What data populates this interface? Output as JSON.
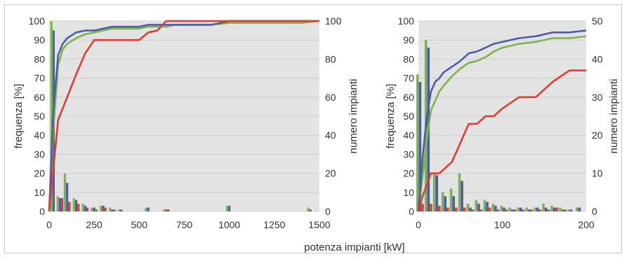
{
  "figure": {
    "xlabel": "potenza impianti [kW]"
  },
  "colors": {
    "blue": "#4f5bab",
    "green": "#7ab648",
    "red": "#e03c31",
    "grid": "#d0d0d0",
    "plot_bg": "#e3e3e3"
  },
  "chart_data": [
    {
      "type": "bar+line",
      "ylabel": "frequenza [%]",
      "y2label": "numero impianti",
      "xlim": [
        0,
        1500
      ],
      "ylim": [
        0,
        100
      ],
      "y2lim": [
        0,
        100
      ],
      "xticks": [
        "0",
        "250",
        "500",
        "750",
        "1000",
        "1250",
        "1500"
      ],
      "yticks": [
        "0",
        "10",
        "20",
        "30",
        "40",
        "50",
        "60",
        "70",
        "80",
        "90",
        "100"
      ],
      "y2ticks": [
        "0",
        "20",
        "40",
        "60",
        "80",
        "100"
      ],
      "grid": true,
      "lines": [
        {
          "color": "green",
          "axis": "left",
          "x": [
            0,
            25,
            50,
            75,
            100,
            150,
            200,
            250,
            300,
            350,
            400,
            450,
            500,
            550,
            600,
            650,
            700,
            800,
            900,
            1000,
            1200,
            1400,
            1500
          ],
          "y": [
            0,
            45,
            77,
            85,
            88,
            91,
            93,
            94,
            95,
            96,
            96,
            96,
            96,
            97,
            97,
            97,
            98,
            98,
            98,
            99,
            99,
            99,
            100
          ]
        },
        {
          "color": "blue",
          "axis": "left",
          "x": [
            0,
            25,
            50,
            75,
            100,
            150,
            200,
            250,
            300,
            350,
            400,
            450,
            500,
            550,
            600,
            650,
            700,
            800,
            900,
            1000,
            1200,
            1400,
            1500
          ],
          "y": [
            0,
            55,
            82,
            88,
            91,
            94,
            95,
            95,
            96,
            97,
            97,
            97,
            97,
            98,
            98,
            98,
            98,
            98,
            98,
            100,
            100,
            100,
            100
          ]
        },
        {
          "color": "red",
          "axis": "right",
          "x": [
            0,
            50,
            100,
            150,
            200,
            250,
            300,
            350,
            400,
            450,
            500,
            550,
            600,
            650,
            700,
            800,
            900,
            1000,
            1200,
            1400,
            1500
          ],
          "y": [
            0,
            48,
            60,
            72,
            83,
            90,
            90,
            90,
            90,
            90,
            90,
            94,
            95,
            100,
            100,
            100,
            100,
            100,
            100,
            100,
            100
          ]
        }
      ],
      "bars": [
        {
          "color": "green",
          "x": [
            25,
            60,
            100,
            150,
            200,
            250,
            300,
            350,
            400,
            550,
            650,
            1000,
            1450
          ],
          "values": [
            100,
            8,
            20,
            7,
            4,
            2,
            3,
            2,
            1,
            2,
            1,
            3,
            2
          ]
        },
        {
          "color": "blue",
          "x": [
            25,
            60,
            100,
            150,
            200,
            250,
            300,
            350,
            400,
            550,
            650,
            1000,
            1450
          ],
          "values": [
            95,
            7,
            15,
            6,
            3,
            2,
            3,
            1,
            1,
            2,
            1,
            3,
            1
          ]
        },
        {
          "color": "red",
          "x": [
            25,
            60,
            100,
            150,
            200,
            250,
            300,
            350,
            400,
            550,
            650,
            1000,
            1450
          ],
          "values": [
            0,
            7,
            5,
            4,
            2,
            1,
            2,
            1,
            0,
            0,
            1,
            0,
            0
          ]
        }
      ]
    },
    {
      "type": "bar+line",
      "ylabel": "frequenza [%]",
      "y2label": "numero impianti",
      "xlim": [
        0,
        200
      ],
      "ylim": [
        0,
        100
      ],
      "y2lim": [
        0,
        50
      ],
      "xticks": [
        "0",
        "100",
        "200"
      ],
      "yticks": [
        "0",
        "10",
        "20",
        "30",
        "40",
        "50",
        "60",
        "70",
        "80",
        "90",
        "100"
      ],
      "y2ticks": [
        "0",
        "10",
        "20",
        "30",
        "40",
        "50"
      ],
      "grid": true,
      "lines": [
        {
          "color": "green",
          "axis": "left",
          "x": [
            0,
            5,
            10,
            15,
            20,
            25,
            30,
            40,
            50,
            60,
            70,
            80,
            90,
            100,
            120,
            140,
            160,
            180,
            200
          ],
          "y": [
            0,
            18,
            38,
            53,
            58,
            63,
            66,
            71,
            75,
            78,
            79,
            81,
            84,
            86,
            88,
            89,
            91,
            91,
            92
          ]
        },
        {
          "color": "blue",
          "axis": "left",
          "x": [
            0,
            5,
            10,
            15,
            20,
            25,
            30,
            40,
            50,
            60,
            70,
            80,
            90,
            100,
            120,
            140,
            160,
            180,
            200
          ],
          "y": [
            0,
            28,
            50,
            63,
            68,
            70,
            73,
            76,
            79,
            83,
            84,
            86,
            88,
            89,
            91,
            92,
            94,
            94,
            95
          ]
        },
        {
          "color": "red",
          "axis": "right",
          "x": [
            0,
            5,
            10,
            15,
            20,
            25,
            30,
            40,
            50,
            60,
            70,
            80,
            90,
            100,
            120,
            140,
            160,
            180,
            200
          ],
          "y": [
            0,
            4,
            7,
            10,
            10,
            10,
            11,
            13,
            18,
            23,
            23,
            25,
            25,
            27,
            30,
            30,
            34,
            37,
            37
          ]
        }
      ],
      "bars": [
        {
          "color": "green",
          "x": [
            2,
            12,
            22,
            32,
            42,
            52,
            62,
            72,
            82,
            92,
            102,
            112,
            122,
            132,
            142,
            152,
            162,
            172,
            182,
            192
          ],
          "values": [
            72,
            90,
            20,
            10,
            12,
            20,
            4,
            6,
            6,
            4,
            3,
            2,
            2,
            2,
            2,
            4,
            3,
            2,
            1,
            2
          ]
        },
        {
          "color": "blue",
          "x": [
            2,
            12,
            22,
            32,
            42,
            52,
            62,
            72,
            82,
            92,
            102,
            112,
            122,
            132,
            142,
            152,
            162,
            172,
            182,
            192
          ],
          "values": [
            68,
            86,
            19,
            8,
            8,
            16,
            2,
            4,
            5,
            3,
            2,
            1,
            2,
            1,
            2,
            2,
            2,
            1,
            1,
            2
          ]
        },
        {
          "color": "red",
          "x": [
            2,
            12,
            22,
            32,
            42,
            52,
            62,
            72,
            82,
            92,
            102,
            112,
            122,
            132,
            142,
            152,
            162,
            172,
            182,
            192
          ],
          "values": [
            4,
            4,
            3,
            2,
            2,
            2,
            1,
            1,
            2,
            1,
            1,
            1,
            1,
            1,
            1,
            1,
            2,
            1,
            0,
            0
          ]
        }
      ]
    }
  ]
}
